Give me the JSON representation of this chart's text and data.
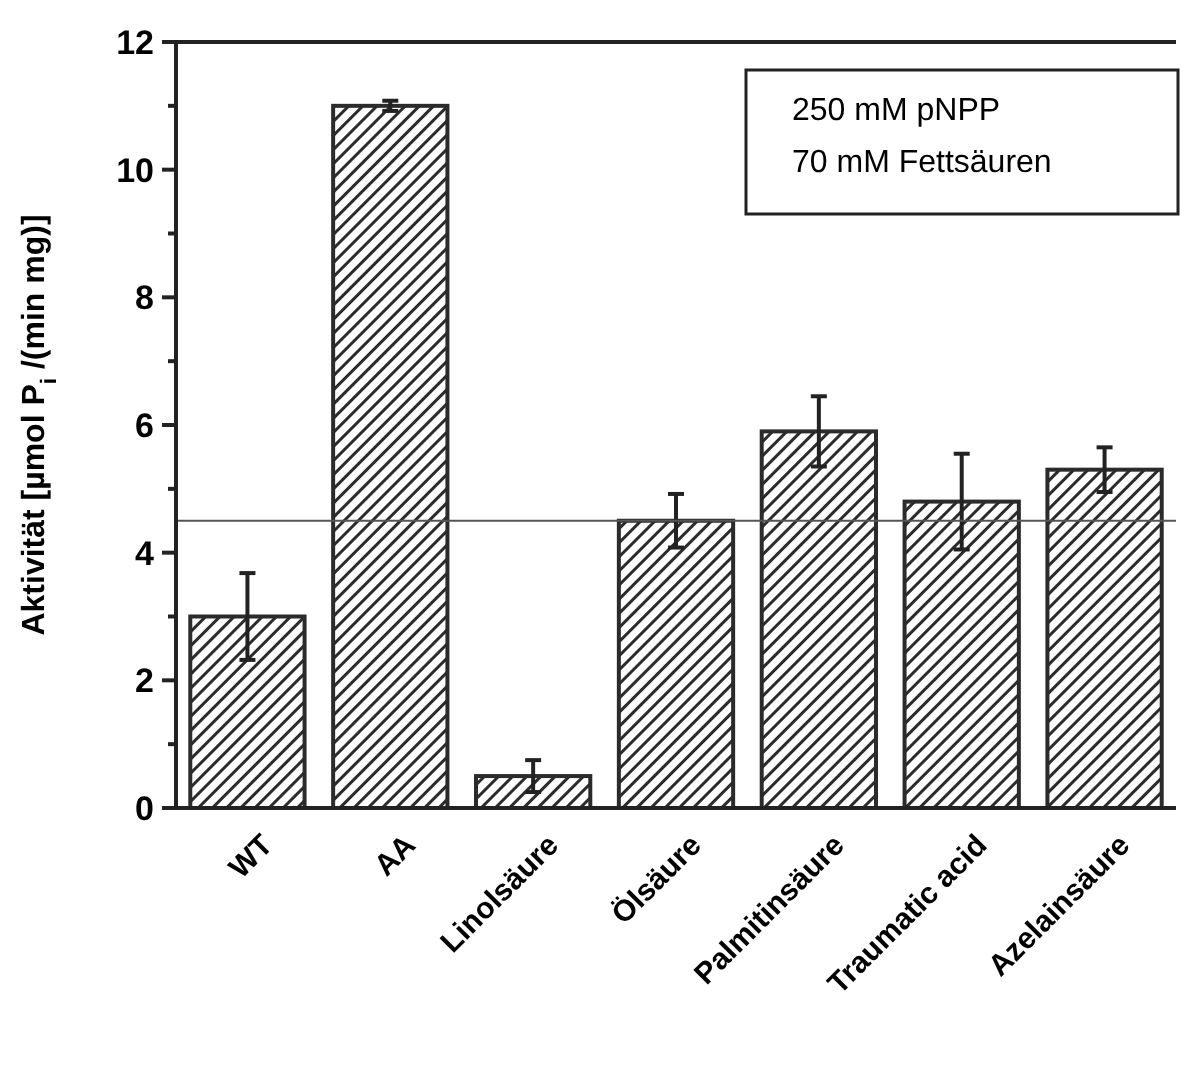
{
  "chart_data": {
    "type": "bar",
    "ylabel": "Aktivität [µmol P$_{i}$ /(min mg)]",
    "categories": [
      "WT",
      "AA",
      "Linolsäure",
      "Ölsäure",
      "Palmitinsäure",
      "Traumatic acid",
      "Azelainsäure"
    ],
    "values": [
      3.0,
      11.0,
      0.5,
      4.5,
      5.9,
      4.8,
      5.3
    ],
    "errors": [
      0.68,
      0.08,
      0.25,
      0.42,
      0.55,
      0.75,
      0.35
    ],
    "color": "#2b2b2b",
    "ylim": [
      0,
      12
    ],
    "yticks": [
      0,
      {
        "value": 1,
        "label": null
      },
      2,
      {
        "value": 3,
        "label": null
      },
      4,
      {
        "value": 5,
        "label": null
      },
      6,
      {
        "value": 7,
        "label": null
      },
      8,
      {
        "value": 9,
        "label": null
      },
      10,
      {
        "value": 11,
        "label": null
      },
      12
    ],
    "ref_lines": [
      {
        "axis": "y",
        "value": 4.5
      }
    ],
    "annotations": [
      "250 mM pNPP",
      "70 mM Fettsäuren"
    ],
    "grid": false
  }
}
